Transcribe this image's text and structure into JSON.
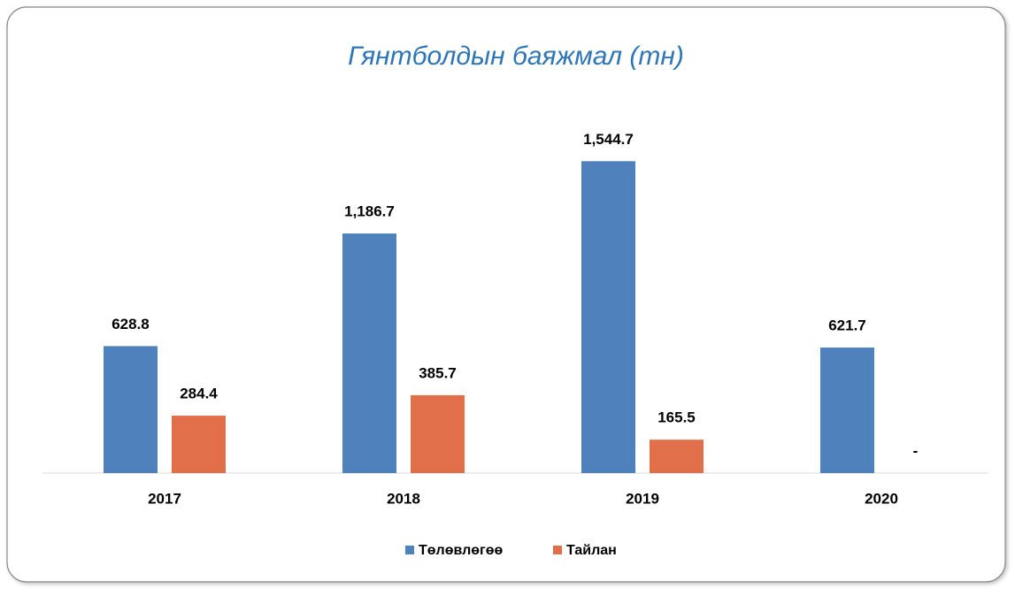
{
  "chart_data": {
    "type": "bar",
    "title": "Гянтболдын баяжмал (тн)",
    "categories": [
      "2017",
      "2018",
      "2019",
      "2020"
    ],
    "series": [
      {
        "name": "Төлөвлөгөө",
        "color": "#4f81bd",
        "values": [
          628.8,
          1186.7,
          1544.7,
          621.7
        ],
        "value_labels": [
          "628.8",
          "1,186.7",
          "1,544.7",
          "621.7"
        ]
      },
      {
        "name": "Тайлан",
        "color": "#e1704a",
        "values": [
          284.4,
          385.7,
          165.5,
          0
        ],
        "value_labels": [
          "284.4",
          "385.7",
          "165.5",
          "-"
        ]
      }
    ],
    "ylim": [
      0,
      1800
    ],
    "legend": "bottom"
  }
}
